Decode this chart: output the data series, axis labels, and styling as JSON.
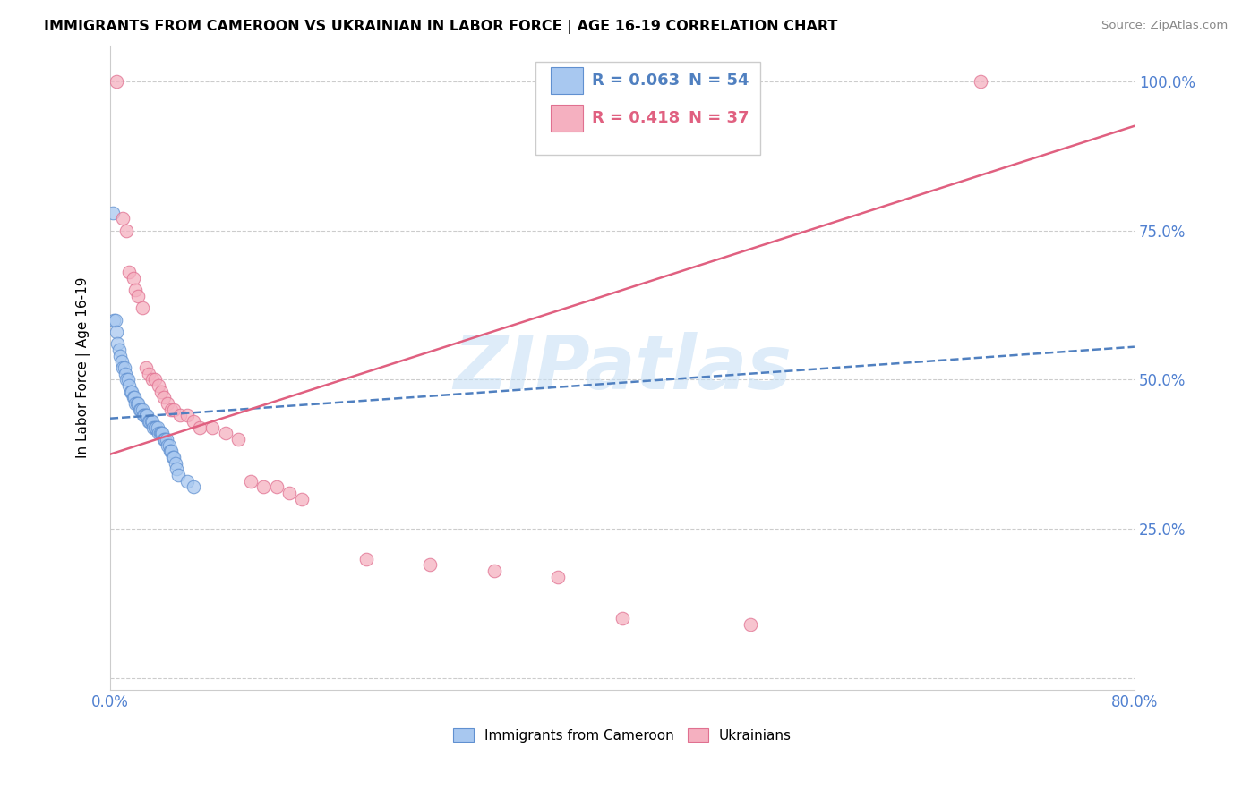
{
  "title": "IMMIGRANTS FROM CAMEROON VS UKRAINIAN IN LABOR FORCE | AGE 16-19 CORRELATION CHART",
  "source": "Source: ZipAtlas.com",
  "ylabel": "In Labor Force | Age 16-19",
  "legend_blue_r": "R = 0.063",
  "legend_blue_n": "N = 54",
  "legend_pink_r": "R = 0.418",
  "legend_pink_n": "N = 37",
  "color_blue_fill": "#A8C8F0",
  "color_pink_fill": "#F5B0C0",
  "color_blue_edge": "#6090D0",
  "color_pink_edge": "#E07090",
  "color_blue_line": "#5080C0",
  "color_pink_line": "#E06080",
  "color_axis_text": "#5080D0",
  "color_grid": "#CCCCCC",
  "watermark": "ZIPatlas",
  "watermark_color": "#C8E0F5",
  "blue_x": [
    0.002,
    0.003,
    0.004,
    0.005,
    0.006,
    0.007,
    0.008,
    0.009,
    0.01,
    0.011,
    0.012,
    0.013,
    0.014,
    0.015,
    0.016,
    0.017,
    0.018,
    0.019,
    0.02,
    0.021,
    0.022,
    0.023,
    0.024,
    0.025,
    0.026,
    0.027,
    0.028,
    0.029,
    0.03,
    0.031,
    0.032,
    0.033,
    0.034,
    0.035,
    0.036,
    0.037,
    0.038,
    0.039,
    0.04,
    0.041,
    0.042,
    0.043,
    0.044,
    0.045,
    0.046,
    0.047,
    0.048,
    0.049,
    0.05,
    0.051,
    0.052,
    0.053,
    0.06,
    0.065
  ],
  "blue_y": [
    0.78,
    0.6,
    0.6,
    0.58,
    0.56,
    0.55,
    0.54,
    0.53,
    0.52,
    0.52,
    0.51,
    0.5,
    0.5,
    0.49,
    0.48,
    0.48,
    0.47,
    0.47,
    0.46,
    0.46,
    0.46,
    0.45,
    0.45,
    0.45,
    0.44,
    0.44,
    0.44,
    0.44,
    0.43,
    0.43,
    0.43,
    0.43,
    0.42,
    0.42,
    0.42,
    0.42,
    0.41,
    0.41,
    0.41,
    0.41,
    0.4,
    0.4,
    0.4,
    0.39,
    0.39,
    0.38,
    0.38,
    0.37,
    0.37,
    0.36,
    0.35,
    0.34,
    0.33,
    0.32
  ],
  "pink_x": [
    0.005,
    0.01,
    0.013,
    0.015,
    0.018,
    0.02,
    0.022,
    0.025,
    0.028,
    0.03,
    0.033,
    0.035,
    0.038,
    0.04,
    0.042,
    0.045,
    0.048,
    0.05,
    0.055,
    0.06,
    0.065,
    0.07,
    0.08,
    0.09,
    0.1,
    0.11,
    0.12,
    0.13,
    0.14,
    0.15,
    0.2,
    0.25,
    0.3,
    0.35,
    0.4,
    0.5,
    0.68
  ],
  "pink_y": [
    1.0,
    0.77,
    0.75,
    0.68,
    0.67,
    0.65,
    0.64,
    0.62,
    0.52,
    0.51,
    0.5,
    0.5,
    0.49,
    0.48,
    0.47,
    0.46,
    0.45,
    0.45,
    0.44,
    0.44,
    0.43,
    0.42,
    0.42,
    0.41,
    0.4,
    0.33,
    0.32,
    0.32,
    0.31,
    0.3,
    0.2,
    0.19,
    0.18,
    0.17,
    0.1,
    0.09,
    1.0
  ],
  "blue_trend_x": [
    0.0,
    0.8
  ],
  "blue_trend_y": [
    0.435,
    0.555
  ],
  "pink_trend_x": [
    0.0,
    0.8
  ],
  "pink_trend_y": [
    0.375,
    0.925
  ],
  "xlim": [
    0.0,
    0.8
  ],
  "ylim": [
    -0.02,
    1.06
  ],
  "yticks": [
    0.0,
    0.25,
    0.5,
    0.75,
    1.0
  ],
  "yticklabels": [
    "",
    "25.0%",
    "50.0%",
    "75.0%",
    "100.0%"
  ],
  "figsize": [
    14.06,
    8.92
  ],
  "dpi": 100
}
